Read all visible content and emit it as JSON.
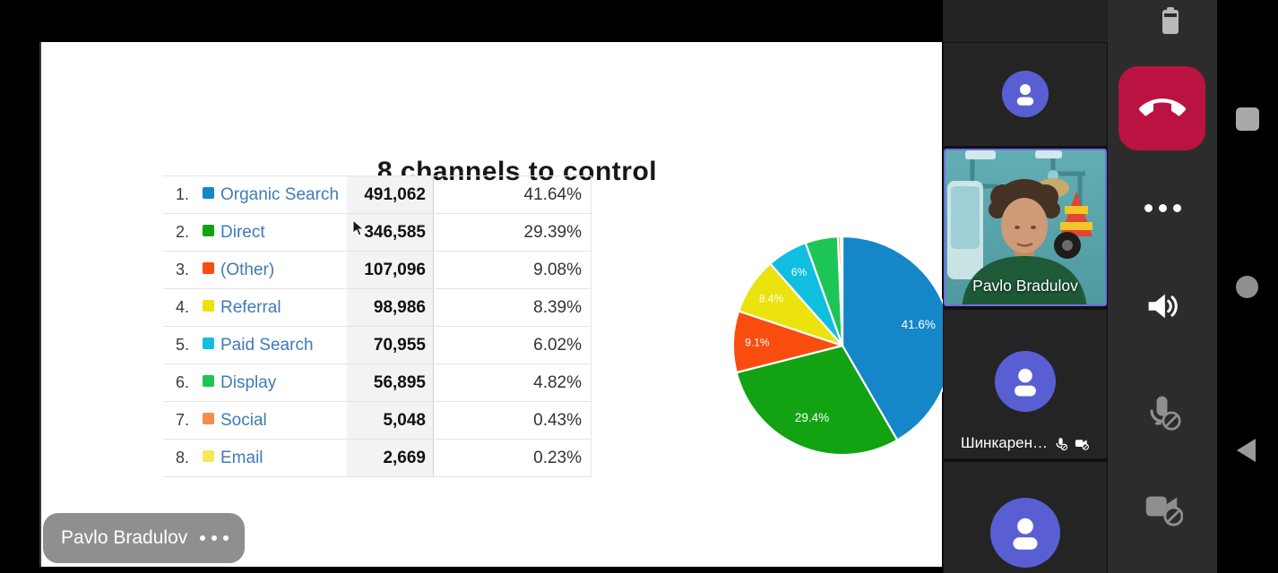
{
  "colors": {
    "avatar_purple": "#595fd3",
    "hangup_red": "#bb1341",
    "active_border": "#6e6ee0",
    "link_blue": "#3f7bb6"
  },
  "status_bar": {
    "notification_dot": "notification-dot",
    "battery_icon": "battery-icon"
  },
  "slide": {
    "title": "8 channels to control",
    "table": {
      "rows": [
        {
          "rank": "1.",
          "label": "Organic Search",
          "value": "491,062",
          "percent": "41.64%",
          "color": "#1586c8"
        },
        {
          "rank": "2.",
          "label": "Direct",
          "value": "346,585",
          "percent": "29.39%",
          "color": "#12a212"
        },
        {
          "rank": "3.",
          "label": "(Other)",
          "value": "107,096",
          "percent": "9.08%",
          "color": "#f94d10"
        },
        {
          "rank": "4.",
          "label": "Referral",
          "value": "98,986",
          "percent": "8.39%",
          "color": "#ece20e"
        },
        {
          "rank": "5.",
          "label": "Paid Search",
          "value": "70,955",
          "percent": "6.02%",
          "color": "#10bfe0"
        },
        {
          "rank": "6.",
          "label": "Display",
          "value": "56,895",
          "percent": "4.82%",
          "color": "#1dc556"
        },
        {
          "rank": "7.",
          "label": "Social",
          "value": "5,048",
          "percent": "0.43%",
          "color": "#f98b4e"
        },
        {
          "rank": "8.",
          "label": "Email",
          "value": "2,669",
          "percent": "0.23%",
          "color": "#f4e95c"
        }
      ]
    }
  },
  "chart_data": {
    "type": "pie",
    "title": "8 channels to control",
    "categories": [
      "Organic Search",
      "Direct",
      "(Other)",
      "Referral",
      "Paid Search",
      "Display",
      "Social",
      "Email"
    ],
    "values": [
      41.64,
      29.39,
      9.08,
      8.39,
      6.02,
      4.82,
      0.43,
      0.23
    ],
    "colors": [
      "#1586c8",
      "#12a212",
      "#f94d10",
      "#ece20e",
      "#10bfe0",
      "#1dc556",
      "#f98b4e",
      "#f4e95c"
    ],
    "slice_labels": [
      "41.6%",
      "29.4%",
      "9.1%",
      "8.4%",
      "6%",
      "",
      "",
      ""
    ],
    "legend_position": "none",
    "start_angle_deg": 0,
    "direction": "clockwise"
  },
  "presenter_overlay": {
    "name": "Pavlo Bradulov",
    "menu_icon": "more-dots-icon"
  },
  "participants": {
    "active_speaker_name": "Pavlo Bradulov",
    "muted_participant_name": "Шинкарен…"
  },
  "controls": {
    "hangup": "end-call-icon",
    "more": "more-options-icon",
    "speaker": "speaker-on-icon",
    "mic": "mic-muted-icon",
    "camera": "camera-muted-icon"
  },
  "nav_bar": {
    "recents": "recents-square-icon",
    "home": "home-circle-icon",
    "back": "back-triangle-icon"
  }
}
